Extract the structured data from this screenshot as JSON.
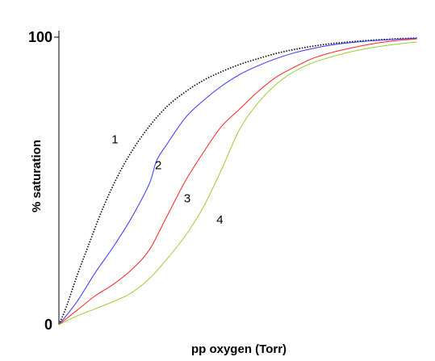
{
  "chart_data": {
    "type": "line",
    "title": "",
    "xlabel": "pp oxygen (Torr)",
    "ylabel": "% saturation",
    "ylim": [
      0,
      100
    ],
    "xlim": [
      0,
      100
    ],
    "yticks": [
      {
        "value": 0,
        "label": "0"
      },
      {
        "value": 100,
        "label": "100"
      }
    ],
    "grid": false,
    "legend": "none",
    "series": [
      {
        "name": "1",
        "color": "#000000",
        "dash": "dotted",
        "x": [
          0,
          2,
          5,
          8,
          12,
          16,
          20,
          25,
          30,
          35,
          40,
          45,
          50,
          55,
          60,
          65,
          70,
          75,
          80,
          85,
          90,
          95,
          99
        ],
        "y": [
          0,
          6,
          17,
          27,
          40,
          51,
          60,
          69,
          76,
          81,
          85,
          88,
          90.5,
          92.5,
          94.3,
          95.7,
          96.8,
          97.7,
          98.3,
          98.8,
          99.2,
          99.5,
          99.7
        ]
      },
      {
        "name": "2",
        "color": "#3333ff",
        "dash": "solid",
        "x": [
          0,
          5,
          10,
          15,
          20,
          25,
          27,
          30,
          35,
          40,
          45,
          50,
          55,
          60,
          65,
          70,
          75,
          80,
          85,
          90,
          95,
          99
        ],
        "y": [
          0,
          8,
          18,
          27,
          37,
          49,
          57,
          63,
          72,
          78,
          83,
          87,
          90,
          92.5,
          94.5,
          96,
          97.2,
          98,
          98.6,
          99,
          99.4,
          99.6
        ]
      },
      {
        "name": "3",
        "color": "#ff2222",
        "dash": "solid",
        "x": [
          0,
          5,
          10,
          15,
          20,
          25,
          30,
          35,
          40,
          45,
          50,
          55,
          60,
          65,
          70,
          75,
          80,
          85,
          90,
          95,
          99
        ],
        "y": [
          0,
          5,
          10,
          14,
          19,
          26,
          38,
          50,
          60,
          69,
          75,
          81,
          86,
          89.5,
          92.5,
          94.5,
          96,
          97.3,
          98.3,
          99,
          99.4
        ]
      },
      {
        "name": "4",
        "color": "#99cc33",
        "dash": "solid",
        "x": [
          0,
          5,
          10,
          15,
          20,
          25,
          30,
          35,
          40,
          45,
          50,
          55,
          60,
          65,
          70,
          75,
          80,
          85,
          90,
          95,
          99
        ],
        "y": [
          0,
          3,
          5.5,
          8,
          11,
          16,
          23,
          31,
          41,
          54,
          68,
          77,
          83.5,
          88,
          91,
          93,
          94.7,
          96,
          97,
          97.8,
          98.3
        ]
      }
    ],
    "annotations": [
      {
        "text": "1",
        "series": "1",
        "x": 15.5,
        "y": 64.5
      },
      {
        "text": "2",
        "series": "2",
        "x": 27.5,
        "y": 55.5
      },
      {
        "text": "3",
        "series": "3",
        "x": 35.5,
        "y": 44
      },
      {
        "text": "4",
        "series": "4",
        "x": 44.5,
        "y": 36.5
      }
    ]
  }
}
